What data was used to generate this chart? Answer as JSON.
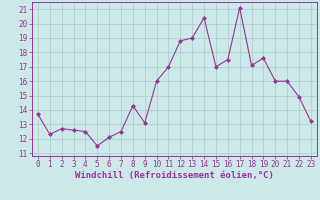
{
  "x": [
    0,
    1,
    2,
    3,
    4,
    5,
    6,
    7,
    8,
    9,
    10,
    11,
    12,
    13,
    14,
    15,
    16,
    17,
    18,
    19,
    20,
    21,
    22,
    23
  ],
  "y": [
    13.7,
    12.3,
    12.7,
    12.6,
    12.5,
    11.5,
    12.1,
    12.5,
    14.3,
    13.1,
    16.0,
    17.0,
    18.8,
    19.0,
    20.4,
    17.0,
    17.5,
    21.1,
    17.1,
    17.6,
    16.0,
    16.0,
    14.9,
    13.2
  ],
  "line_color": "#993399",
  "marker": "D",
  "marker_size": 2.0,
  "bg_color": "#cce8e8",
  "grid_color": "#aacccc",
  "ylabel_ticks": [
    11,
    12,
    13,
    14,
    15,
    16,
    17,
    18,
    19,
    20,
    21
  ],
  "xlabel_ticks": [
    0,
    1,
    2,
    3,
    4,
    5,
    6,
    7,
    8,
    9,
    10,
    11,
    12,
    13,
    14,
    15,
    16,
    17,
    18,
    19,
    20,
    21,
    22,
    23
  ],
  "xlim": [
    -0.5,
    23.5
  ],
  "ylim": [
    10.8,
    21.5
  ],
  "xlabel": "Windchill (Refroidissement éolien,°C)",
  "font_color": "#993399",
  "tick_fontsize": 5.5,
  "label_fontsize": 6.5
}
